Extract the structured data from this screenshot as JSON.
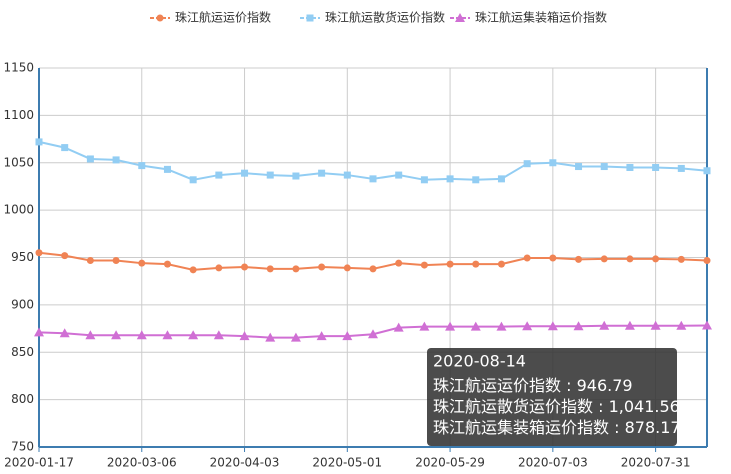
{
  "chart_data": {
    "type": "line",
    "categories": [
      "2020-01-17",
      null,
      null,
      null,
      "2020-03-06",
      null,
      null,
      null,
      "2020-04-03",
      null,
      null,
      null,
      "2020-05-01",
      null,
      null,
      null,
      "2020-05-29",
      null,
      null,
      null,
      "2020-07-03",
      null,
      null,
      null,
      "2020-07-31",
      null,
      "2020-08-14"
    ],
    "series": [
      {
        "name": "珠江航运运价指数",
        "color": "#f08354",
        "values": [
          955,
          952,
          946.8,
          946.8,
          944,
          943,
          937,
          939,
          940,
          938,
          938,
          940,
          939,
          938,
          944,
          942,
          943,
          943,
          943,
          949.5,
          949.5,
          948,
          948.5,
          948.5,
          948.5,
          948,
          946.79
        ],
        "value_labels": [
          null,
          null,
          null,
          null,
          null,
          null,
          null,
          null,
          null,
          null,
          null,
          null,
          null,
          null,
          null,
          null,
          null,
          null,
          null,
          null,
          null,
          null,
          null,
          null,
          null,
          null,
          "946.79"
        ]
      },
      {
        "name": "珠江航运散货运价指数",
        "color": "#92cdf3",
        "values": [
          1072,
          1066,
          1054,
          1053,
          1047,
          1043,
          1032,
          1037,
          1039,
          1037,
          1036,
          1039,
          1037,
          1033,
          1037,
          1032,
          1033,
          1032,
          1033,
          1049,
          1050,
          1046,
          1046,
          1045,
          1045,
          1044,
          1041.56
        ],
        "value_labels": [
          null,
          null,
          null,
          null,
          null,
          null,
          null,
          null,
          null,
          null,
          null,
          null,
          null,
          null,
          null,
          null,
          null,
          null,
          null,
          null,
          null,
          null,
          null,
          null,
          null,
          null,
          "1,041.56"
        ]
      },
      {
        "name": "珠江航运集装箱运价指数",
        "color": "#d06fd4",
        "values": [
          871,
          870,
          868,
          868,
          868,
          868,
          868,
          868,
          867,
          865.5,
          865.5,
          867,
          867,
          869,
          876,
          877,
          877,
          877,
          877,
          877.5,
          877.5,
          877.5,
          878,
          878,
          878,
          878,
          878.17
        ],
        "value_labels": [
          null,
          null,
          null,
          null,
          null,
          null,
          null,
          null,
          null,
          null,
          null,
          null,
          null,
          null,
          null,
          null,
          null,
          null,
          null,
          null,
          null,
          null,
          null,
          null,
          null,
          null,
          "878.17"
        ]
      }
    ],
    "ylim": [
      750,
      1150
    ],
    "yticks": [
      750,
      800,
      850,
      900,
      950,
      1000,
      1050,
      1100,
      1150
    ],
    "grid": true
  }
}
